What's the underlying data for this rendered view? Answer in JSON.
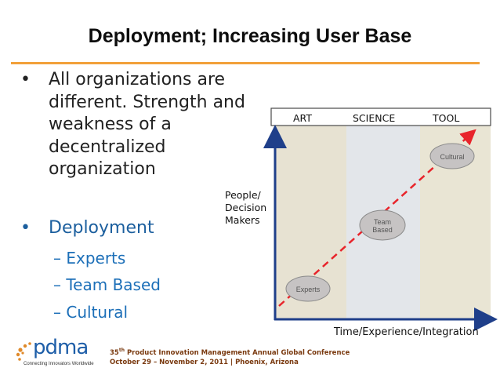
{
  "slide": {
    "title": "Deployment; Increasing User Base",
    "bullet_main": "All organizations are different. Strength and weakness of a decentralized organization",
    "bullet_deployment": "Deployment",
    "sub_bullets": [
      "Experts",
      "Team Based",
      "Cultural"
    ],
    "bullet_glyph": "•",
    "dash_glyph": "–"
  },
  "chart_data": {
    "type": "diagram",
    "columns": [
      "ART",
      "SCIENCE",
      "TOOL"
    ],
    "y_axis_label": [
      "People/",
      "Decision",
      "Makers"
    ],
    "x_axis_label": "Time/Experience/Integration",
    "stages": [
      "Experts",
      "Team Based",
      "Cultural"
    ],
    "stage_labels": {
      "experts": "Experts",
      "team_line1": "Team",
      "team_line2": "Based",
      "cultural": "Cultural"
    },
    "colors": {
      "art_band": "#e7e2d2",
      "science_band": "#e3e6ea",
      "tool_band": "#e9e5d4",
      "arrow": "#e8242b",
      "axis": "#1f3f8a"
    }
  },
  "footer": {
    "logo_text": "pdma",
    "logo_tagline": "Connecting Innovators Worldwide",
    "conference_number": "35",
    "conference_suffix": "th",
    "conference_rest": " Product Innovation Management Annual Global Conference",
    "dates_location": "October 29 – November 2, 2011 | Phoenix, Arizona",
    "colors": {
      "accent": "#f2a03a",
      "blue": "#1c6fb8"
    }
  }
}
